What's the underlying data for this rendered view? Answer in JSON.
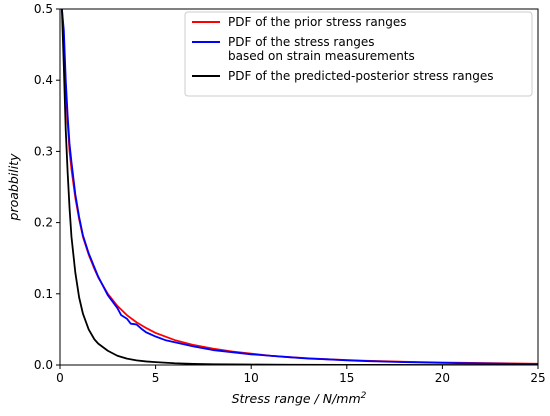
{
  "chart_data": {
    "type": "line",
    "xlabel": "Stress range / N/mm",
    "xlabel_sup": "2",
    "ylabel": "proabbility",
    "xlim": [
      0,
      25
    ],
    "ylim": [
      0,
      0.5
    ],
    "xticks": [
      "0",
      "5",
      "10",
      "15",
      "20",
      "25"
    ],
    "xtick_values": [
      0,
      5,
      10,
      15,
      20,
      25
    ],
    "yticks": [
      "0.0",
      "0.1",
      "0.2",
      "0.3",
      "0.4",
      "0.5"
    ],
    "ytick_values": [
      0,
      0.1,
      0.2,
      0.3,
      0.4,
      0.5
    ],
    "grid": false,
    "legend_position": "top-right",
    "series": [
      {
        "name": "PDF of the prior stress ranges",
        "color": "#ff0000",
        "x": [
          0.05,
          0.1,
          0.2,
          0.3,
          0.4,
          0.5,
          0.6,
          0.8,
          1.0,
          1.2,
          1.5,
          1.8,
          2.0,
          2.5,
          3.0,
          3.5,
          4.0,
          4.5,
          5.0,
          6.0,
          7.0,
          8.0,
          9.0,
          10.0,
          11.0,
          12.0,
          13.0,
          14.0,
          15.0,
          16.0,
          18.0,
          20.0,
          22.0,
          25.0
        ],
        "y": [
          0.5,
          0.5,
          0.46,
          0.39,
          0.34,
          0.3,
          0.275,
          0.235,
          0.205,
          0.18,
          0.155,
          0.135,
          0.123,
          0.1,
          0.083,
          0.07,
          0.06,
          0.052,
          0.045,
          0.035,
          0.028,
          0.023,
          0.019,
          0.016,
          0.013,
          0.011,
          0.0095,
          0.008,
          0.007,
          0.006,
          0.0045,
          0.0035,
          0.0027,
          0.0018
        ]
      },
      {
        "name": "PDF of the stress ranges\nbased on strain measurements",
        "color": "#0000ff",
        "x": [
          0.05,
          0.1,
          0.2,
          0.3,
          0.4,
          0.5,
          0.6,
          0.8,
          1.0,
          1.2,
          1.5,
          1.8,
          2.0,
          2.5,
          3.0,
          3.2,
          3.5,
          3.7,
          4.0,
          4.3,
          4.5,
          5.0,
          5.5,
          6.0,
          7.0,
          8.0,
          9.0,
          10.0,
          11.0,
          12.0,
          13.0,
          14.0,
          15.0,
          16.0,
          18.0,
          20.0,
          22.0,
          25.0
        ],
        "y": [
          0.5,
          0.5,
          0.47,
          0.4,
          0.35,
          0.31,
          0.285,
          0.24,
          0.208,
          0.182,
          0.157,
          0.137,
          0.124,
          0.098,
          0.08,
          0.07,
          0.065,
          0.058,
          0.057,
          0.05,
          0.046,
          0.04,
          0.035,
          0.032,
          0.026,
          0.021,
          0.018,
          0.015,
          0.013,
          0.011,
          0.009,
          0.008,
          0.0065,
          0.0055,
          0.004,
          0.003,
          0.0022,
          0.0012
        ]
      },
      {
        "name": "PDF of the predicted-posterior stress ranges",
        "color": "#000000",
        "x": [
          0.05,
          0.1,
          0.2,
          0.3,
          0.4,
          0.5,
          0.6,
          0.8,
          1.0,
          1.2,
          1.5,
          1.8,
          2.0,
          2.5,
          3.0,
          3.5,
          4.0,
          4.5,
          5.0,
          6.0,
          7.0,
          8.0,
          9.0,
          10.0,
          12.0,
          15.0,
          20.0,
          25.0
        ],
        "y": [
          0.5,
          0.5,
          0.42,
          0.33,
          0.27,
          0.22,
          0.18,
          0.13,
          0.095,
          0.072,
          0.05,
          0.036,
          0.03,
          0.02,
          0.013,
          0.009,
          0.0065,
          0.005,
          0.004,
          0.0025,
          0.0016,
          0.0011,
          0.0008,
          0.0006,
          0.0003,
          0.0001,
          0.0,
          0.0
        ]
      }
    ]
  }
}
